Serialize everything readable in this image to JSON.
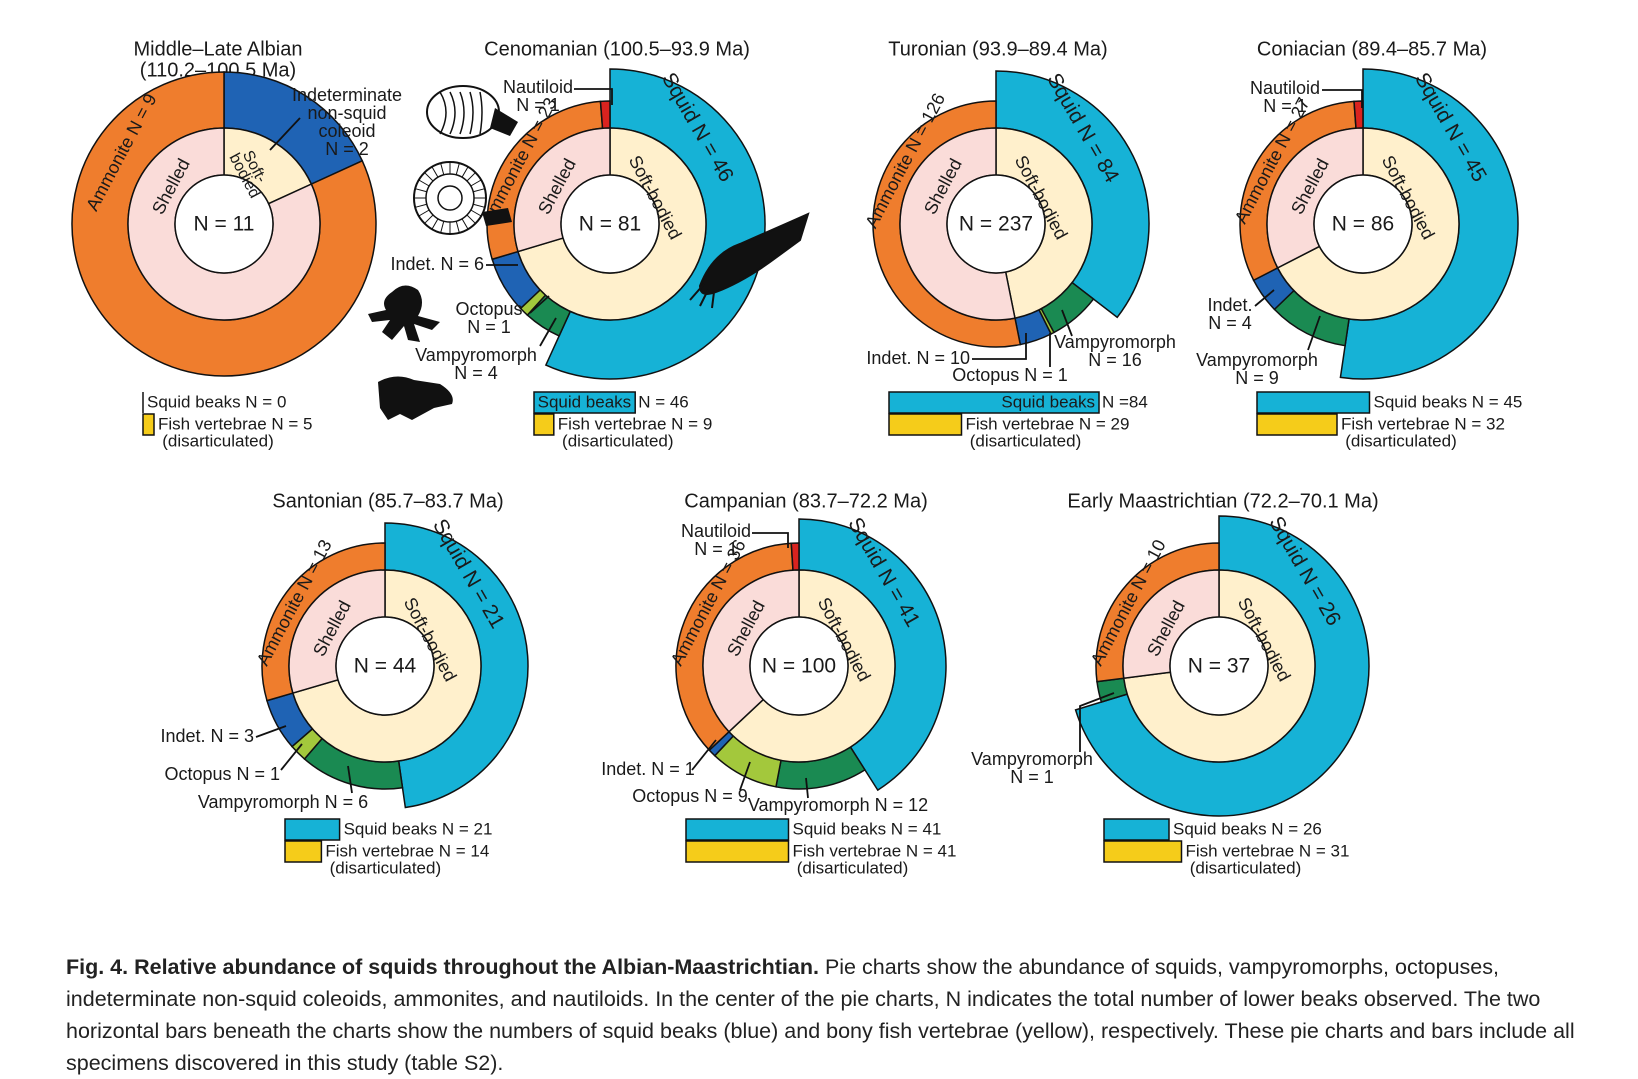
{
  "colors": {
    "squid": "#16b2d6",
    "ammonite": "#ef7d2d",
    "nautiloid": "#d9231f",
    "indet": "#1f63b4",
    "octopus": "#a3c83c",
    "vampyromorph": "#1a8a52",
    "shelled": "#fadcd9",
    "softbodied": "#fff0cc",
    "fish": "#f5cc1a",
    "silhouette": "#111111"
  },
  "chart_data": [
    {
      "type": "pie",
      "panel": "albian",
      "title_lines": [
        "Middle–Late Albian",
        "(110.2–100.5 Ma)"
      ],
      "center_label": "N = 11",
      "total": 11,
      "slices": [
        {
          "group": "Indeterminate non-squid coleoid",
          "value": 2
        },
        {
          "group": "Ammonite",
          "value": 9
        }
      ],
      "inner_ring": [
        {
          "group": "Soft-bodied",
          "value": 2
        },
        {
          "group": "Shelled",
          "value": 9
        }
      ],
      "labels": {
        "ammonite": "Ammonite N = 9",
        "shelled": "Shelled",
        "softbodied": [
          "Soft-",
          "bodied"
        ],
        "indet_callout": [
          "Indeterminate",
          "non-squid",
          "coleoid",
          "N = 2"
        ]
      },
      "bars": {
        "squid": {
          "value": 0,
          "label": "Squid beaks N = 0"
        },
        "fish": {
          "value": 5,
          "label": "Fish vertebrae N = 5",
          "note": "(disarticulated)"
        }
      }
    },
    {
      "type": "pie",
      "panel": "cenomanian",
      "title_lines": [
        "Cenomanian (100.5–93.9 Ma)"
      ],
      "center_label": "N = 81",
      "total": 81,
      "slices": [
        {
          "group": "Squid",
          "value": 46
        },
        {
          "group": "Vampyromorph",
          "value": 4
        },
        {
          "group": "Octopus",
          "value": 1
        },
        {
          "group": "Indet.",
          "value": 6
        },
        {
          "group": "Ammonite",
          "value": 23
        },
        {
          "group": "Nautiloid",
          "value": 1
        }
      ],
      "inner_ring": [
        {
          "group": "Soft-bodied",
          "value": 57
        },
        {
          "group": "Shelled",
          "value": 24
        }
      ],
      "labels": {
        "squid": "Squid N = 46",
        "ammonite": "Ammonite N = 23",
        "shelled": "Shelled",
        "softbodied": "Soft-bodied",
        "nautiloid": [
          "Nautiloid",
          "N = 1"
        ],
        "indet": "Indet. N = 6",
        "octopus": [
          "Octopus",
          "N = 1"
        ],
        "vampyromorph": [
          "Vampyromorph",
          "N = 4"
        ]
      },
      "bars": {
        "squid": {
          "value": 46,
          "label": "Squid beaks",
          "suffix": "N = 46"
        },
        "fish": {
          "value": 9,
          "label": "Fish vertebrae N = 9",
          "note": "(disarticulated)"
        }
      }
    },
    {
      "type": "pie",
      "panel": "turonian",
      "title_lines": [
        "Turonian (93.9–89.4 Ma)"
      ],
      "center_label": "N = 237",
      "total": 237,
      "slices": [
        {
          "group": "Squid",
          "value": 84
        },
        {
          "group": "Vampyromorph",
          "value": 16
        },
        {
          "group": "Octopus",
          "value": 1
        },
        {
          "group": "Indet.",
          "value": 10
        },
        {
          "group": "Ammonite",
          "value": 126
        }
      ],
      "inner_ring": [
        {
          "group": "Soft-bodied",
          "value": 111
        },
        {
          "group": "Shelled",
          "value": 126
        }
      ],
      "labels": {
        "squid": "Squid N = 84",
        "ammonite": "Ammonite N = 126",
        "shelled": "Shelled",
        "softbodied": "Soft-bodied",
        "indet": "Indet. N = 10",
        "octopus": "Octopus N = 1",
        "vampyromorph": [
          "Vampyromorph",
          "N = 16"
        ]
      },
      "bars": {
        "squid": {
          "value": 84,
          "label": "Squid beaks",
          "suffix": "N =84"
        },
        "fish": {
          "value": 29,
          "label": "Fish vertebrae N = 29",
          "note": "(disarticulated)"
        }
      }
    },
    {
      "type": "pie",
      "panel": "coniacian",
      "title_lines": [
        "Coniacian (89.4–85.7 Ma)"
      ],
      "center_label": "N = 86",
      "total": 86,
      "slices": [
        {
          "group": "Squid",
          "value": 45
        },
        {
          "group": "Vampyromorph",
          "value": 9
        },
        {
          "group": "Indet.",
          "value": 4
        },
        {
          "group": "Ammonite",
          "value": 27
        },
        {
          "group": "Nautiloid",
          "value": 1
        }
      ],
      "inner_ring": [
        {
          "group": "Soft-bodied",
          "value": 58
        },
        {
          "group": "Shelled",
          "value": 28
        }
      ],
      "labels": {
        "squid": "Squid N = 45",
        "ammonite": "Ammonite N = 27",
        "shelled": "Shelled",
        "softbodied": "Soft-bodied",
        "nautiloid": [
          "Nautiloid",
          "N = 1"
        ],
        "indet": [
          "Indet.",
          "N = 4"
        ],
        "vampyromorph": [
          "Vampyromorph",
          "N = 9"
        ]
      },
      "bars": {
        "squid": {
          "value": 45,
          "label": "Squid beaks N = 45"
        },
        "fish": {
          "value": 32,
          "label": "Fish vertebrae N = 32",
          "note": "(disarticulated)"
        }
      }
    },
    {
      "type": "pie",
      "panel": "santonian",
      "title_lines": [
        "Santonian (85.7–83.7 Ma)"
      ],
      "center_label": "N = 44",
      "total": 44,
      "slices": [
        {
          "group": "Squid",
          "value": 21
        },
        {
          "group": "Vampyromorph",
          "value": 6
        },
        {
          "group": "Octopus",
          "value": 1
        },
        {
          "group": "Indet.",
          "value": 3
        },
        {
          "group": "Ammonite",
          "value": 13
        }
      ],
      "inner_ring": [
        {
          "group": "Soft-bodied",
          "value": 31
        },
        {
          "group": "Shelled",
          "value": 13
        }
      ],
      "labels": {
        "squid": "Squid N = 21",
        "ammonite": "Ammonite N = 13",
        "shelled": "Shelled",
        "softbodied": "Soft-bodied",
        "indet": "Indet. N = 3",
        "octopus": "Octopus N = 1",
        "vampyromorph": "Vampyromorph N = 6"
      },
      "bars": {
        "squid": {
          "value": 21,
          "label": "Squid beaks N = 21"
        },
        "fish": {
          "value": 14,
          "label": "Fish vertebrae N = 14",
          "note": "(disarticulated)"
        }
      }
    },
    {
      "type": "pie",
      "panel": "campanian",
      "title_lines": [
        "Campanian (83.7–72.2 Ma)"
      ],
      "center_label": "N = 100",
      "total": 100,
      "slices": [
        {
          "group": "Squid",
          "value": 41
        },
        {
          "group": "Vampyromorph",
          "value": 12
        },
        {
          "group": "Octopus",
          "value": 9
        },
        {
          "group": "Indet.",
          "value": 1
        },
        {
          "group": "Ammonite",
          "value": 36
        },
        {
          "group": "Nautiloid",
          "value": 1
        }
      ],
      "inner_ring": [
        {
          "group": "Soft-bodied",
          "value": 63
        },
        {
          "group": "Shelled",
          "value": 37
        }
      ],
      "labels": {
        "squid": "Squid N = 41",
        "ammonite": "Ammonite N = 36",
        "shelled": "Shelled",
        "softbodied": "Soft-bodied",
        "nautiloid": [
          "Nautiloid",
          "N = 1"
        ],
        "indet": "Indet. N = 1",
        "octopus": "Octopus N = 9",
        "vampyromorph": "Vampyromorph N = 12"
      },
      "bars": {
        "squid": {
          "value": 41,
          "label": "Squid beaks N = 41"
        },
        "fish": {
          "value": 41,
          "label": "Fish vertebrae N = 41",
          "note": "(disarticulated)"
        }
      }
    },
    {
      "type": "pie",
      "panel": "maastrichtian",
      "title_lines": [
        "Early Maastrichtian (72.2–70.1 Ma)"
      ],
      "center_label": "N = 37",
      "total": 37,
      "slices": [
        {
          "group": "Squid",
          "value": 26
        },
        {
          "group": "Vampyromorph",
          "value": 1
        },
        {
          "group": "Ammonite",
          "value": 10
        }
      ],
      "inner_ring": [
        {
          "group": "Soft-bodied",
          "value": 27
        },
        {
          "group": "Shelled",
          "value": 10
        }
      ],
      "labels": {
        "squid": "Squid N = 26",
        "ammonite": "Ammonite N = 10",
        "shelled": "Shelled",
        "softbodied": "Soft-bodied",
        "vampyromorph": [
          "Vampyromorph",
          "N = 1"
        ]
      },
      "bars": {
        "squid": {
          "value": 26,
          "label": "Squid beaks N = 26"
        },
        "fish": {
          "value": 31,
          "label": "Fish vertebrae N = 31",
          "note": "(disarticulated)"
        }
      }
    }
  ],
  "caption": {
    "bold": "Fig. 4. Relative abundance of squids throughout the Albian-Maastrichtian.",
    "text": " Pie charts show the abundance of squids, vampyromorphs, octopuses, indeterminate non-squid coleoids, ammonites, and nautiloids. In the center of the pie charts, N indicates the total number of lower beaks observed. The two horizontal bars beneath the charts show the numbers of squid beaks (blue) and bony fish vertebrae (yellow), respectively. These pie charts and bars include all specimens discovered in this study (table S2)."
  }
}
